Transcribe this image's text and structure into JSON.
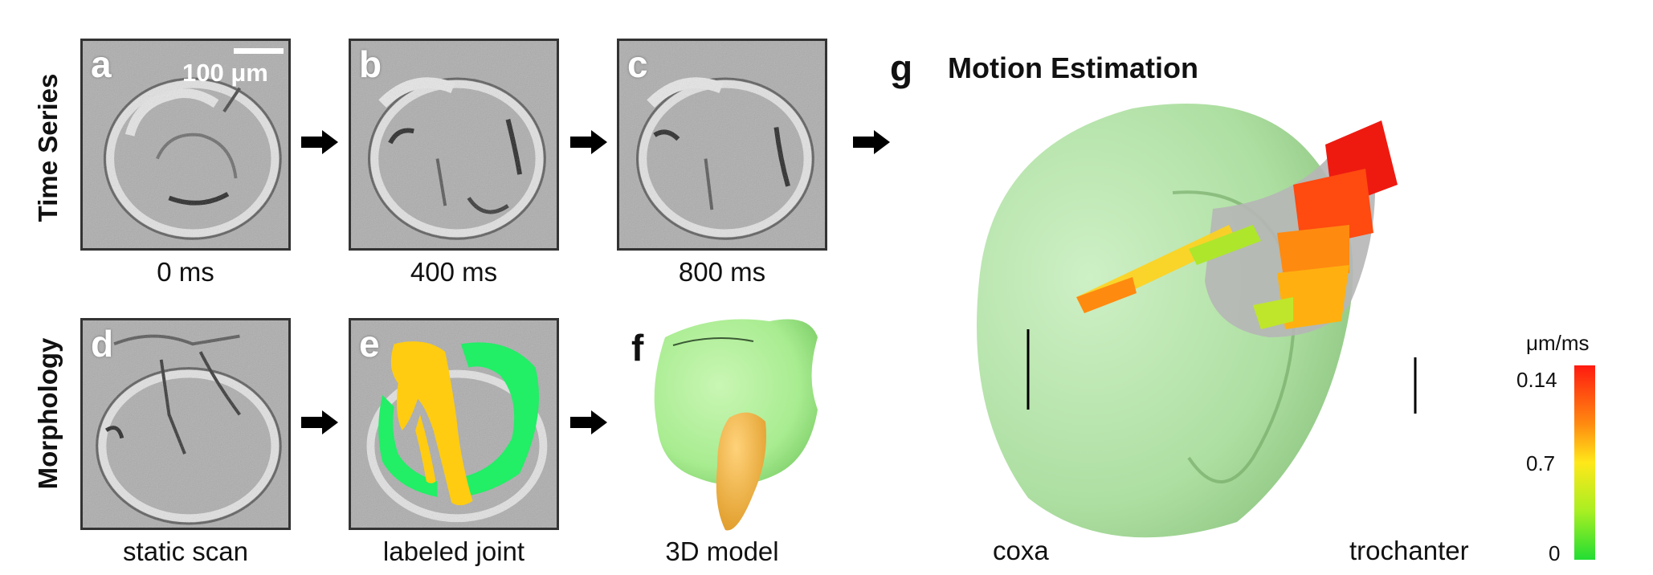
{
  "rows": {
    "time_series": "Time Series",
    "morphology": "Morphology"
  },
  "panels": {
    "a": {
      "letter": "a",
      "caption": "0 ms"
    },
    "b": {
      "letter": "b",
      "caption": "400 ms"
    },
    "c": {
      "letter": "c",
      "caption": "800 ms"
    },
    "d": {
      "letter": "d",
      "caption": "static scan"
    },
    "e": {
      "letter": "e",
      "caption": "labeled joint"
    },
    "f": {
      "letter": "f",
      "caption": "3D model"
    },
    "g": {
      "letter": "g",
      "title": "Motion Estimation"
    }
  },
  "scalebar": {
    "label": "100 μm"
  },
  "motion": {
    "label_left": "coxa",
    "label_right": "trochanter"
  },
  "colorbar": {
    "unit": "μm/ms",
    "ticks": [
      "0.14",
      "0.7",
      "0"
    ],
    "colors": [
      "#ff1a10",
      "#ffe81a",
      "#22dd33"
    ]
  },
  "colors": {
    "joint_outer": "#22ee66",
    "joint_inner": "#ffcc11",
    "model_coxa": "#a8ec90",
    "model_trochanter": "#f2b640"
  }
}
